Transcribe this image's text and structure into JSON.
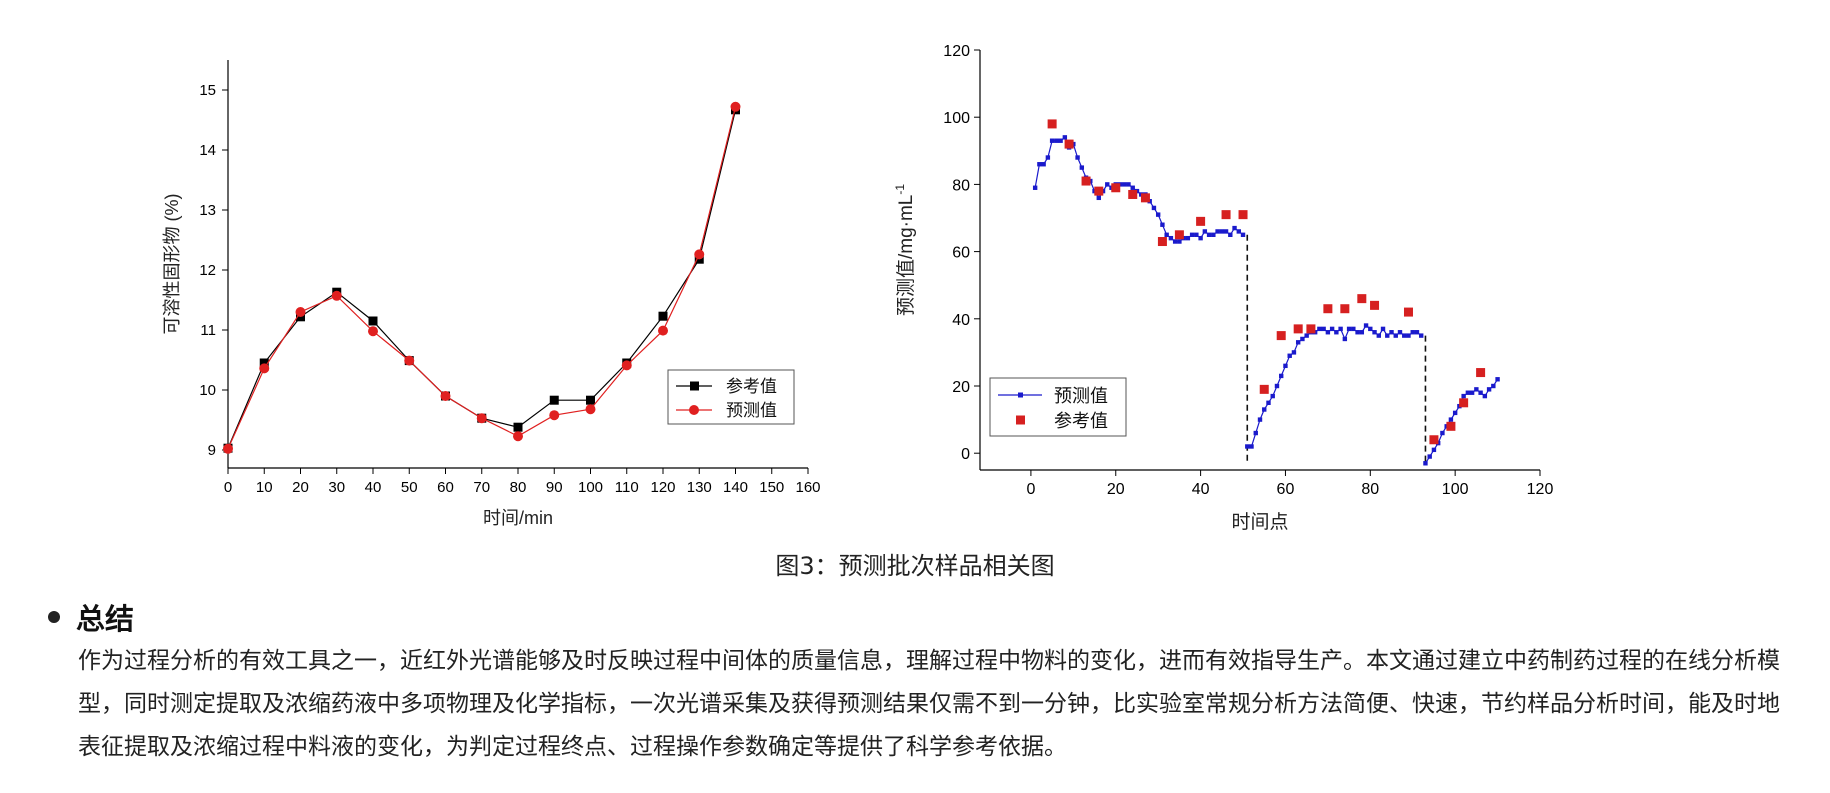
{
  "chart_data": [
    {
      "type": "line",
      "xlabel": "时间/min",
      "ylabel": "可溶性固形物 (%)",
      "xlim": [
        0,
        160
      ],
      "ylim": [
        8.7,
        15.5
      ],
      "x_ticks": [
        0,
        10,
        20,
        30,
        40,
        50,
        60,
        70,
        80,
        90,
        100,
        110,
        120,
        130,
        140,
        150,
        160
      ],
      "y_ticks": [
        9,
        10,
        11,
        12,
        13,
        14,
        15
      ],
      "legend": "bottom-right",
      "grid": false,
      "series": [
        {
          "name": "参考值",
          "color": "#000000",
          "marker": "square",
          "x": [
            0,
            10,
            20,
            30,
            40,
            50,
            60,
            70,
            80,
            90,
            100,
            110,
            120,
            130,
            140
          ],
          "y": [
            9.03,
            10.45,
            11.22,
            11.63,
            11.15,
            10.49,
            9.9,
            9.53,
            9.38,
            9.83,
            9.83,
            10.45,
            11.23,
            12.18,
            14.67
          ]
        },
        {
          "name": "预测值",
          "color": "#e02020",
          "marker": "circle",
          "x": [
            0,
            10,
            20,
            30,
            40,
            50,
            60,
            70,
            80,
            90,
            100,
            110,
            120,
            130,
            140
          ],
          "y": [
            9.02,
            10.36,
            11.3,
            11.57,
            10.98,
            10.49,
            9.9,
            9.53,
            9.23,
            9.58,
            9.68,
            10.41,
            10.99,
            12.26,
            14.72
          ]
        }
      ]
    },
    {
      "type": "scatter",
      "xlabel": "时间点",
      "ylabel_main": "预测值/mg·mL",
      "ylabel_sup": "-1",
      "xlim": [
        -12,
        120
      ],
      "ylim": [
        -5,
        120
      ],
      "x_ticks": [
        0,
        20,
        40,
        60,
        80,
        100,
        120
      ],
      "y_ticks": [
        0,
        20,
        40,
        60,
        80,
        100,
        120
      ],
      "legend": "bottom-left",
      "grid": false,
      "dividers_x": [
        51,
        93
      ],
      "series": [
        {
          "name": "预测值",
          "color": "#1a1acc",
          "marker": "small-square",
          "connected": true,
          "segments": [
            {
              "x": [
                1,
                2,
                3,
                4,
                5,
                6,
                7,
                8,
                9,
                10,
                11,
                12,
                13,
                14,
                15,
                16,
                17,
                18,
                19,
                20,
                21,
                22,
                23,
                24,
                25,
                26,
                27,
                28,
                29,
                30,
                31,
                32,
                33,
                34,
                35,
                36,
                37,
                38,
                39,
                40,
                41,
                42,
                43,
                44,
                45,
                46,
                47,
                48,
                49,
                50
              ],
              "y": [
                79,
                86,
                86,
                88,
                93,
                93,
                93,
                94,
                91,
                92,
                88,
                85,
                82,
                81,
                78,
                76,
                78,
                80,
                79,
                80,
                80,
                80,
                80,
                79,
                78,
                77,
                77,
                75,
                73,
                71,
                68,
                65,
                64,
                63,
                63,
                64,
                64,
                65,
                65,
                64,
                66,
                65,
                65,
                66,
                66,
                66,
                65,
                67,
                66,
                65
              ]
            },
            {
              "x": [
                51,
                52,
                53,
                54,
                55,
                56,
                57,
                58,
                59,
                60,
                61,
                62,
                63,
                64,
                65,
                66,
                67,
                68,
                69,
                70,
                71,
                72,
                73,
                74,
                75,
                76,
                77,
                78,
                79,
                80,
                81,
                82,
                83,
                84,
                85,
                86,
                87,
                88,
                89,
                90,
                91,
                92
              ],
              "y": [
                2,
                2,
                6,
                10,
                13,
                15,
                17,
                20,
                23,
                26,
                29,
                30,
                33,
                34,
                35,
                36,
                36,
                37,
                37,
                36,
                37,
                36,
                37,
                34,
                37,
                37,
                36,
                36,
                38,
                37,
                36,
                35,
                37,
                35,
                36,
                35,
                36,
                35,
                35,
                36,
                36,
                35
              ]
            },
            {
              "x": [
                93,
                94,
                95,
                96,
                97,
                98,
                99,
                100,
                101,
                102,
                103,
                104,
                105,
                106,
                107,
                108,
                109,
                110
              ],
              "y": [
                -3,
                -1,
                1,
                3,
                6,
                8,
                10,
                12,
                14,
                17,
                18,
                18,
                19,
                18,
                17,
                19,
                20,
                22
              ]
            }
          ]
        },
        {
          "name": "参考值",
          "color": "#d62020",
          "marker": "square",
          "connected": false,
          "x": [
            5,
            9,
            13,
            16,
            20,
            24,
            27,
            31,
            35,
            40,
            46,
            50,
            55,
            59,
            63,
            66,
            70,
            74,
            78,
            81,
            89,
            95,
            99,
            102,
            106
          ],
          "y": [
            98,
            92,
            81,
            78,
            79,
            77,
            76,
            63,
            65,
            69,
            71,
            71,
            19,
            35,
            37,
            37,
            43,
            43,
            46,
            44,
            42,
            4,
            8,
            15,
            24
          ]
        }
      ]
    }
  ],
  "caption": "图3：预测批次样品相关图",
  "section": {
    "title": "总结",
    "body": "作为过程分析的有效工具之一，近红外光谱能够及时反映过程中间体的质量信息，理解过程中物料的变化，进而有效指导生产。本文通过建立中药制药过程的在线分析模型，同时测定提取及浓缩药液中多项物理及化学指标，一次光谱采集及获得预测结果仅需不到一分钟，比实验室常规分析方法简便、快速，节约样品分析时间，能及时地表征提取及浓缩过程中料液的变化，为判定过程终点、过程操作参数确定等提供了科学参考依据。"
  }
}
